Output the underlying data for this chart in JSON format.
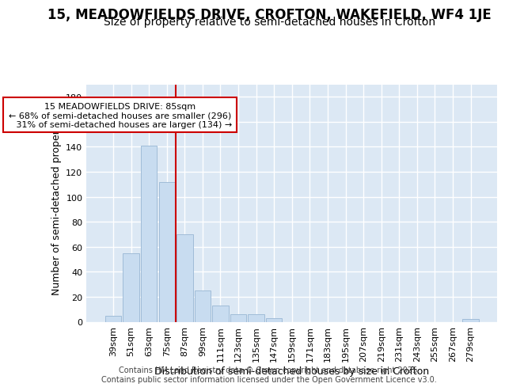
{
  "title": "15, MEADOWFIELDS DRIVE, CROFTON, WAKEFIELD, WF4 1JE",
  "subtitle": "Size of property relative to semi-detached houses in Crofton",
  "xlabel": "Distribution of semi-detached houses by size in Crofton",
  "ylabel": "Number of semi-detached properties",
  "categories": [
    "39sqm",
    "51sqm",
    "63sqm",
    "75sqm",
    "87sqm",
    "99sqm",
    "111sqm",
    "123sqm",
    "135sqm",
    "147sqm",
    "159sqm",
    "171sqm",
    "183sqm",
    "195sqm",
    "207sqm",
    "219sqm",
    "231sqm",
    "243sqm",
    "255sqm",
    "267sqm",
    "279sqm"
  ],
  "values": [
    5,
    55,
    141,
    112,
    70,
    25,
    13,
    6,
    6,
    3,
    0,
    0,
    0,
    0,
    0,
    0,
    0,
    0,
    0,
    0,
    2
  ],
  "bar_color": "#c8dcf0",
  "bar_edge_color": "#a0bcd8",
  "vline_index": 4,
  "vline_color": "#cc0000",
  "annotation_text": "15 MEADOWFIELDS DRIVE: 85sqm\n← 68% of semi-detached houses are smaller (296)\n   31% of semi-detached houses are larger (134) →",
  "annotation_box_color": "#cc0000",
  "footer_line1": "Contains HM Land Registry data © Crown copyright and database right 2025.",
  "footer_line2": "Contains public sector information licensed under the Open Government Licence v3.0.",
  "ylim": [
    0,
    190
  ],
  "yticks": [
    0,
    20,
    40,
    60,
    80,
    100,
    120,
    140,
    160,
    180
  ],
  "fig_bg_color": "#ffffff",
  "plot_bg_color": "#dce8f4",
  "grid_color": "#ffffff",
  "title_fontsize": 12,
  "subtitle_fontsize": 10,
  "tick_fontsize": 8,
  "label_fontsize": 9,
  "footer_fontsize": 7
}
